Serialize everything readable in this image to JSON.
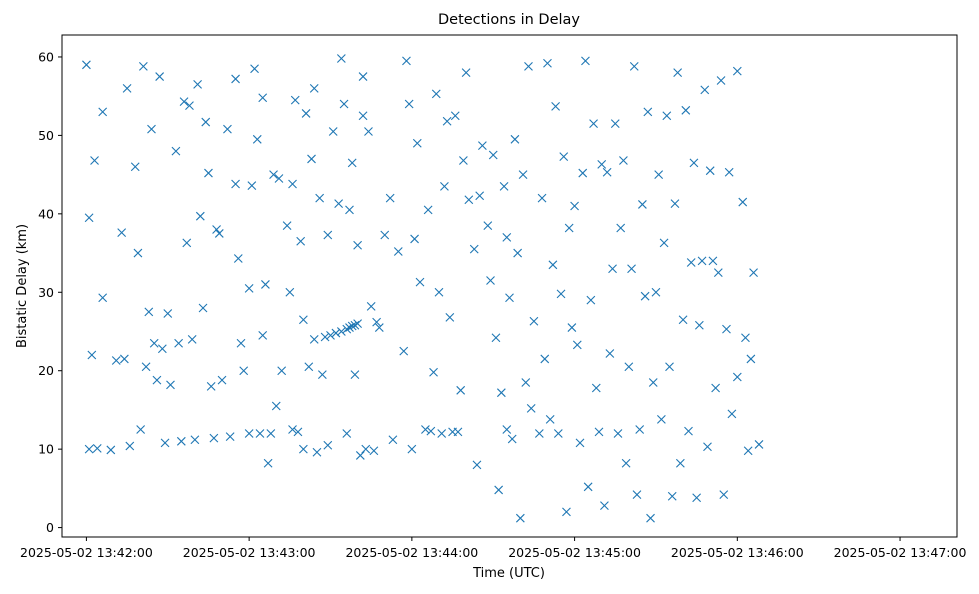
{
  "chart_data": {
    "type": "scatter",
    "title": "Detections in Delay",
    "xlabel": "Time (UTC)",
    "ylabel": "Bistatic Delay (km)",
    "x_ticks": [
      "2025-05-02 13:42:00",
      "2025-05-02 13:43:00",
      "2025-05-02 13:44:00",
      "2025-05-02 13:45:00",
      "2025-05-02 13:46:00",
      "2025-05-02 13:47:00"
    ],
    "y_ticks": [
      0,
      10,
      20,
      30,
      40,
      50,
      60
    ],
    "xlim": [
      "2025-05-02 13:41:51",
      "2025-05-02 13:47:21"
    ],
    "ylim": [
      -1.2,
      62.8
    ],
    "marker": "x",
    "color": "#1f77b4",
    "grid": false,
    "series": [
      {
        "points": [
          [
            "2025-05-02 13:42:00",
            59.0
          ],
          [
            "2025-05-02 13:42:01",
            39.5
          ],
          [
            "2025-05-02 13:42:02",
            22.0
          ],
          [
            "2025-05-02 13:42:01",
            10.0
          ],
          [
            "2025-05-02 13:42:03",
            46.8
          ],
          [
            "2025-05-02 13:42:04",
            10.1
          ],
          [
            "2025-05-02 13:42:06",
            29.3
          ],
          [
            "2025-05-02 13:42:06",
            53.0
          ],
          [
            "2025-05-02 13:42:09",
            9.9
          ],
          [
            "2025-05-02 13:42:11",
            21.3
          ],
          [
            "2025-05-02 13:42:13",
            37.6
          ],
          [
            "2025-05-02 13:42:14",
            21.5
          ],
          [
            "2025-05-02 13:42:15",
            56.0
          ],
          [
            "2025-05-02 13:42:16",
            10.4
          ],
          [
            "2025-05-02 13:42:18",
            46.0
          ],
          [
            "2025-05-02 13:42:19",
            35.0
          ],
          [
            "2025-05-02 13:42:20",
            12.5
          ],
          [
            "2025-05-02 13:42:21",
            58.8
          ],
          [
            "2025-05-02 13:42:22",
            20.5
          ],
          [
            "2025-05-02 13:42:23",
            27.5
          ],
          [
            "2025-05-02 13:42:24",
            50.8
          ],
          [
            "2025-05-02 13:42:25",
            23.5
          ],
          [
            "2025-05-02 13:42:26",
            18.8
          ],
          [
            "2025-05-02 13:42:27",
            57.5
          ],
          [
            "2025-05-02 13:42:28",
            22.8
          ],
          [
            "2025-05-02 13:42:29",
            10.8
          ],
          [
            "2025-05-02 13:42:30",
            27.3
          ],
          [
            "2025-05-02 13:42:31",
            18.2
          ],
          [
            "2025-05-02 13:42:33",
            48.0
          ],
          [
            "2025-05-02 13:42:34",
            23.5
          ],
          [
            "2025-05-02 13:42:35",
            11.0
          ],
          [
            "2025-05-02 13:42:36",
            54.3
          ],
          [
            "2025-05-02 13:42:37",
            36.3
          ],
          [
            "2025-05-02 13:42:38",
            53.8
          ],
          [
            "2025-05-02 13:42:39",
            24.0
          ],
          [
            "2025-05-02 13:42:40",
            11.2
          ],
          [
            "2025-05-02 13:42:41",
            56.5
          ],
          [
            "2025-05-02 13:42:42",
            39.7
          ],
          [
            "2025-05-02 13:42:43",
            28.0
          ],
          [
            "2025-05-02 13:42:44",
            51.7
          ],
          [
            "2025-05-02 13:42:45",
            45.2
          ],
          [
            "2025-05-02 13:42:46",
            18.0
          ],
          [
            "2025-05-02 13:42:47",
            11.4
          ],
          [
            "2025-05-02 13:42:48",
            38.0
          ],
          [
            "2025-05-02 13:42:49",
            37.5
          ],
          [
            "2025-05-02 13:42:50",
            18.8
          ],
          [
            "2025-05-02 13:42:52",
            50.8
          ],
          [
            "2025-05-02 13:42:53",
            11.6
          ],
          [
            "2025-05-02 13:42:55",
            57.2
          ],
          [
            "2025-05-02 13:42:55",
            43.8
          ],
          [
            "2025-05-02 13:42:56",
            34.3
          ],
          [
            "2025-05-02 13:42:57",
            23.5
          ],
          [
            "2025-05-02 13:42:58",
            20.0
          ],
          [
            "2025-05-02 13:43:00",
            12.0
          ],
          [
            "2025-05-02 13:43:00",
            30.5
          ],
          [
            "2025-05-02 13:43:01",
            43.6
          ],
          [
            "2025-05-02 13:43:02",
            58.5
          ],
          [
            "2025-05-02 13:43:03",
            49.5
          ],
          [
            "2025-05-02 13:43:04",
            12.0
          ],
          [
            "2025-05-02 13:43:05",
            54.8
          ],
          [
            "2025-05-02 13:43:05",
            24.5
          ],
          [
            "2025-05-02 13:43:06",
            31.0
          ],
          [
            "2025-05-02 13:43:07",
            8.2
          ],
          [
            "2025-05-02 13:43:08",
            12.0
          ],
          [
            "2025-05-02 13:43:09",
            45.0
          ],
          [
            "2025-05-02 13:43:10",
            15.5
          ],
          [
            "2025-05-02 13:43:11",
            44.5
          ],
          [
            "2025-05-02 13:43:12",
            20.0
          ],
          [
            "2025-05-02 13:43:14",
            38.5
          ],
          [
            "2025-05-02 13:43:15",
            30.0
          ],
          [
            "2025-05-02 13:43:16",
            43.8
          ],
          [
            "2025-05-02 13:43:16",
            12.5
          ],
          [
            "2025-05-02 13:43:17",
            54.5
          ],
          [
            "2025-05-02 13:43:18",
            12.2
          ],
          [
            "2025-05-02 13:43:19",
            36.5
          ],
          [
            "2025-05-02 13:43:20",
            10.0
          ],
          [
            "2025-05-02 13:43:20",
            26.5
          ],
          [
            "2025-05-02 13:43:21",
            52.8
          ],
          [
            "2025-05-02 13:43:22",
            20.5
          ],
          [
            "2025-05-02 13:43:23",
            47.0
          ],
          [
            "2025-05-02 13:43:24",
            56.0
          ],
          [
            "2025-05-02 13:43:24",
            24.0
          ],
          [
            "2025-05-02 13:43:25",
            9.6
          ],
          [
            "2025-05-02 13:43:26",
            42.0
          ],
          [
            "2025-05-02 13:43:27",
            19.5
          ],
          [
            "2025-05-02 13:43:28",
            24.3
          ],
          [
            "2025-05-02 13:43:29",
            37.3
          ],
          [
            "2025-05-02 13:43:29",
            10.5
          ],
          [
            "2025-05-02 13:43:30",
            24.5
          ],
          [
            "2025-05-02 13:43:31",
            50.5
          ],
          [
            "2025-05-02 13:43:32",
            24.8
          ],
          [
            "2025-05-02 13:43:33",
            41.3
          ],
          [
            "2025-05-02 13:43:34",
            25.0
          ],
          [
            "2025-05-02 13:43:34",
            59.8
          ],
          [
            "2025-05-02 13:43:35",
            54.0
          ],
          [
            "2025-05-02 13:43:36",
            25.3
          ],
          [
            "2025-05-02 13:43:36",
            12.0
          ],
          [
            "2025-05-02 13:43:37",
            40.5
          ],
          [
            "2025-05-02 13:43:37",
            25.5
          ],
          [
            "2025-05-02 13:43:38",
            46.5
          ],
          [
            "2025-05-02 13:43:38",
            25.7
          ],
          [
            "2025-05-02 13:43:39",
            19.5
          ],
          [
            "2025-05-02 13:43:39",
            25.8
          ],
          [
            "2025-05-02 13:43:40",
            36.0
          ],
          [
            "2025-05-02 13:43:40",
            26.0
          ],
          [
            "2025-05-02 13:43:41",
            9.2
          ],
          [
            "2025-05-02 13:43:42",
            57.5
          ],
          [
            "2025-05-02 13:43:42",
            52.5
          ],
          [
            "2025-05-02 13:43:43",
            10.0
          ],
          [
            "2025-05-02 13:43:44",
            50.5
          ],
          [
            "2025-05-02 13:43:45",
            28.2
          ],
          [
            "2025-05-02 13:43:46",
            9.8
          ],
          [
            "2025-05-02 13:43:47",
            26.2
          ],
          [
            "2025-05-02 13:43:48",
            25.5
          ],
          [
            "2025-05-02 13:43:50",
            37.3
          ],
          [
            "2025-05-02 13:43:52",
            42.0
          ],
          [
            "2025-05-02 13:43:53",
            11.2
          ],
          [
            "2025-05-02 13:43:55",
            35.2
          ],
          [
            "2025-05-02 13:43:57",
            22.5
          ],
          [
            "2025-05-02 13:43:58",
            59.5
          ],
          [
            "2025-05-02 13:43:59",
            54.0
          ],
          [
            "2025-05-02 13:44:00",
            10.0
          ],
          [
            "2025-05-02 13:44:01",
            36.8
          ],
          [
            "2025-05-02 13:44:02",
            49.0
          ],
          [
            "2025-05-02 13:44:03",
            31.3
          ],
          [
            "2025-05-02 13:44:05",
            12.5
          ],
          [
            "2025-05-02 13:44:06",
            40.5
          ],
          [
            "2025-05-02 13:44:07",
            12.3
          ],
          [
            "2025-05-02 13:44:08",
            19.8
          ],
          [
            "2025-05-02 13:44:09",
            55.3
          ],
          [
            "2025-05-02 13:44:10",
            30.0
          ],
          [
            "2025-05-02 13:44:11",
            12.0
          ],
          [
            "2025-05-02 13:44:12",
            43.5
          ],
          [
            "2025-05-02 13:44:13",
            51.8
          ],
          [
            "2025-05-02 13:44:14",
            26.8
          ],
          [
            "2025-05-02 13:44:15",
            12.2
          ],
          [
            "2025-05-02 13:44:16",
            52.5
          ],
          [
            "2025-05-02 13:44:17",
            12.2
          ],
          [
            "2025-05-02 13:44:18",
            17.5
          ],
          [
            "2025-05-02 13:44:19",
            46.8
          ],
          [
            "2025-05-02 13:44:20",
            58.0
          ],
          [
            "2025-05-02 13:44:21",
            41.8
          ],
          [
            "2025-05-02 13:44:23",
            35.5
          ],
          [
            "2025-05-02 13:44:24",
            8.0
          ],
          [
            "2025-05-02 13:44:25",
            42.3
          ],
          [
            "2025-05-02 13:44:26",
            48.7
          ],
          [
            "2025-05-02 13:44:28",
            38.5
          ],
          [
            "2025-05-02 13:44:29",
            31.5
          ],
          [
            "2025-05-02 13:44:30",
            47.5
          ],
          [
            "2025-05-02 13:44:31",
            24.2
          ],
          [
            "2025-05-02 13:44:32",
            4.8
          ],
          [
            "2025-05-02 13:44:33",
            17.2
          ],
          [
            "2025-05-02 13:44:34",
            43.5
          ],
          [
            "2025-05-02 13:44:35",
            12.5
          ],
          [
            "2025-05-02 13:44:35",
            37.0
          ],
          [
            "2025-05-02 13:44:36",
            29.3
          ],
          [
            "2025-05-02 13:44:37",
            11.3
          ],
          [
            "2025-05-02 13:44:38",
            49.5
          ],
          [
            "2025-05-02 13:44:39",
            35.0
          ],
          [
            "2025-05-02 13:44:40",
            1.2
          ],
          [
            "2025-05-02 13:44:41",
            45.0
          ],
          [
            "2025-05-02 13:44:42",
            18.5
          ],
          [
            "2025-05-02 13:44:43",
            58.8
          ],
          [
            "2025-05-02 13:44:44",
            15.2
          ],
          [
            "2025-05-02 13:44:45",
            26.3
          ],
          [
            "2025-05-02 13:44:47",
            12.0
          ],
          [
            "2025-05-02 13:44:48",
            42.0
          ],
          [
            "2025-05-02 13:44:49",
            21.5
          ],
          [
            "2025-05-02 13:44:50",
            59.2
          ],
          [
            "2025-05-02 13:44:51",
            13.8
          ],
          [
            "2025-05-02 13:44:52",
            33.5
          ],
          [
            "2025-05-02 13:44:53",
            53.7
          ],
          [
            "2025-05-02 13:44:54",
            12.0
          ],
          [
            "2025-05-02 13:44:55",
            29.8
          ],
          [
            "2025-05-02 13:44:56",
            47.3
          ],
          [
            "2025-05-02 13:44:57",
            2.0
          ],
          [
            "2025-05-02 13:44:58",
            38.2
          ],
          [
            "2025-05-02 13:44:59",
            25.5
          ],
          [
            "2025-05-02 13:45:00",
            41.0
          ],
          [
            "2025-05-02 13:45:01",
            23.3
          ],
          [
            "2025-05-02 13:45:02",
            10.8
          ],
          [
            "2025-05-02 13:45:03",
            45.2
          ],
          [
            "2025-05-02 13:45:04",
            59.5
          ],
          [
            "2025-05-02 13:45:05",
            5.2
          ],
          [
            "2025-05-02 13:45:06",
            29.0
          ],
          [
            "2025-05-02 13:45:07",
            51.5
          ],
          [
            "2025-05-02 13:45:08",
            17.8
          ],
          [
            "2025-05-02 13:45:09",
            12.2
          ],
          [
            "2025-05-02 13:45:10",
            46.3
          ],
          [
            "2025-05-02 13:45:11",
            2.8
          ],
          [
            "2025-05-02 13:45:12",
            45.3
          ],
          [
            "2025-05-02 13:45:13",
            22.2
          ],
          [
            "2025-05-02 13:45:14",
            33.0
          ],
          [
            "2025-05-02 13:45:15",
            51.5
          ],
          [
            "2025-05-02 13:45:16",
            12.0
          ],
          [
            "2025-05-02 13:45:17",
            38.2
          ],
          [
            "2025-05-02 13:45:18",
            46.8
          ],
          [
            "2025-05-02 13:45:19",
            8.2
          ],
          [
            "2025-05-02 13:45:20",
            20.5
          ],
          [
            "2025-05-02 13:45:21",
            33.0
          ],
          [
            "2025-05-02 13:45:22",
            58.8
          ],
          [
            "2025-05-02 13:45:23",
            4.2
          ],
          [
            "2025-05-02 13:45:24",
            12.5
          ],
          [
            "2025-05-02 13:45:25",
            41.2
          ],
          [
            "2025-05-02 13:45:26",
            29.5
          ],
          [
            "2025-05-02 13:45:27",
            53.0
          ],
          [
            "2025-05-02 13:45:28",
            1.2
          ],
          [
            "2025-05-02 13:45:29",
            18.5
          ],
          [
            "2025-05-02 13:45:30",
            30.0
          ],
          [
            "2025-05-02 13:45:31",
            45.0
          ],
          [
            "2025-05-02 13:45:32",
            13.8
          ],
          [
            "2025-05-02 13:45:33",
            36.3
          ],
          [
            "2025-05-02 13:45:34",
            52.5
          ],
          [
            "2025-05-02 13:45:35",
            20.5
          ],
          [
            "2025-05-02 13:45:36",
            4.0
          ],
          [
            "2025-05-02 13:45:37",
            41.3
          ],
          [
            "2025-05-02 13:45:38",
            58.0
          ],
          [
            "2025-05-02 13:45:39",
            8.2
          ],
          [
            "2025-05-02 13:45:40",
            26.5
          ],
          [
            "2025-05-02 13:45:41",
            53.2
          ],
          [
            "2025-05-02 13:45:42",
            12.3
          ],
          [
            "2025-05-02 13:45:43",
            33.8
          ],
          [
            "2025-05-02 13:45:44",
            46.5
          ],
          [
            "2025-05-02 13:45:45",
            3.8
          ],
          [
            "2025-05-02 13:45:46",
            25.8
          ],
          [
            "2025-05-02 13:45:47",
            34.0
          ],
          [
            "2025-05-02 13:45:48",
            55.8
          ],
          [
            "2025-05-02 13:45:49",
            10.3
          ],
          [
            "2025-05-02 13:45:50",
            45.5
          ],
          [
            "2025-05-02 13:45:51",
            34.0
          ],
          [
            "2025-05-02 13:45:52",
            17.8
          ],
          [
            "2025-05-02 13:45:53",
            32.5
          ],
          [
            "2025-05-02 13:45:54",
            57.0
          ],
          [
            "2025-05-02 13:45:55",
            4.2
          ],
          [
            "2025-05-02 13:45:56",
            25.3
          ],
          [
            "2025-05-02 13:45:57",
            45.3
          ],
          [
            "2025-05-02 13:45:58",
            14.5
          ],
          [
            "2025-05-02 13:46:00",
            58.2
          ],
          [
            "2025-05-02 13:46:00",
            19.2
          ],
          [
            "2025-05-02 13:46:02",
            41.5
          ],
          [
            "2025-05-02 13:46:03",
            24.2
          ],
          [
            "2025-05-02 13:46:04",
            9.8
          ],
          [
            "2025-05-02 13:46:05",
            21.5
          ],
          [
            "2025-05-02 13:46:06",
            32.5
          ],
          [
            "2025-05-02 13:46:08",
            10.6
          ]
        ]
      }
    ]
  }
}
